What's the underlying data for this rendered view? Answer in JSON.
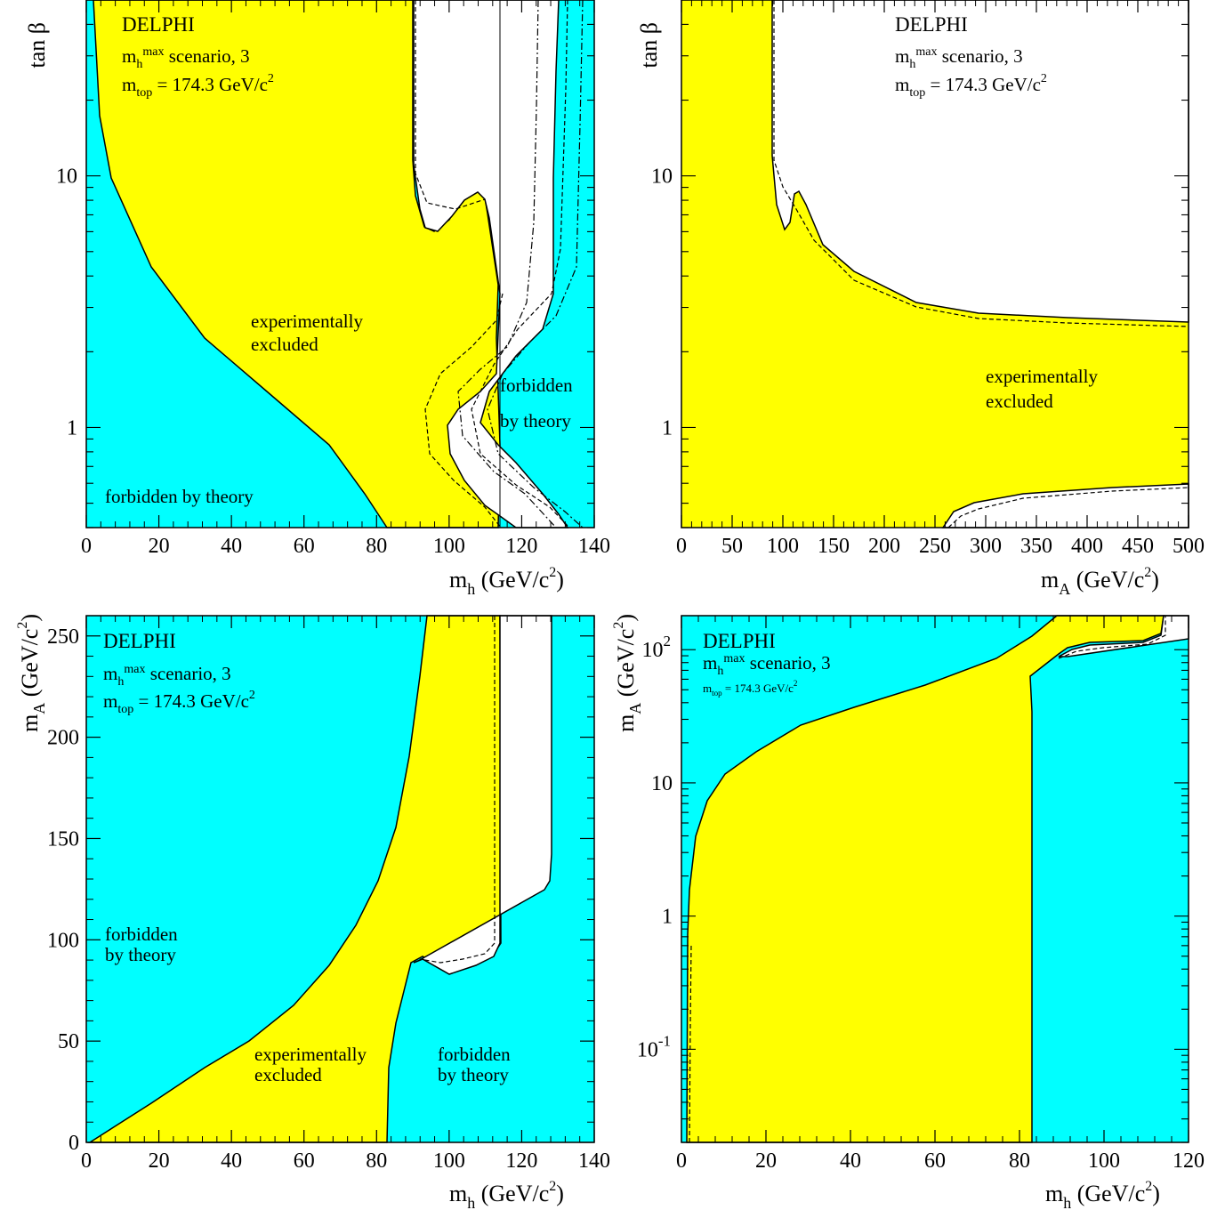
{
  "colors": {
    "allowed": "#ffffff",
    "excluded": "#ffff00",
    "forbidden": "#00ffff",
    "frame": "#000000"
  },
  "chart_data": [
    {
      "type": "area",
      "panel": "top-left",
      "xlabel": "m_h (GeV/c^2)",
      "xlabel_main": "m",
      "xlabel_sub": "h",
      "xlabel_unit": "(GeV/c",
      "xlabel_unit_end": ")",
      "ylabel": "tan β",
      "xscale": "linear",
      "yscale": "log",
      "xlim": [
        0,
        140
      ],
      "ylim": [
        0.4,
        50
      ],
      "xticks": [
        "0",
        "20",
        "40",
        "60",
        "80",
        "100",
        "120",
        "140"
      ],
      "yticks": [
        "1",
        "10"
      ],
      "header": {
        "experiment": "DELPHI",
        "line2": "m_h^max scenario, 3",
        "line3": "m_top = 174.3 GeV/c^2"
      },
      "annotations": [
        "experimentally",
        "excluded",
        "forbidden",
        "by theory",
        "forbidden by theory"
      ],
      "regions": {
        "forbidden_left_boundary": [
          [
            0,
            10
          ],
          [
            10,
            5.2
          ],
          [
            20,
            3.2
          ],
          [
            30,
            2.2
          ],
          [
            40,
            1.6
          ],
          [
            50,
            1.2
          ],
          [
            60,
            0.9
          ],
          [
            70,
            0.7
          ],
          [
            78,
            0.55
          ],
          [
            83,
            0.4
          ]
        ],
        "excluded_right_boundary": [
          [
            90,
            50
          ],
          [
            91,
            9.5
          ],
          [
            93,
            7.0
          ],
          [
            96,
            6.0
          ],
          [
            100,
            6.5
          ],
          [
            104,
            8.0
          ],
          [
            108,
            8.8
          ],
          [
            111,
            8.0
          ],
          [
            113,
            3.5
          ],
          [
            114,
            1.6
          ],
          [
            114,
            0.4
          ]
        ],
        "forbidden_right_boundary": [
          [
            128,
            50
          ],
          [
            128,
            12
          ],
          [
            126,
            4
          ],
          [
            122,
            2.2
          ],
          [
            115,
            1.6
          ],
          [
            108,
            1.4
          ],
          [
            102,
            1.1
          ],
          [
            104,
            0.8
          ],
          [
            112,
            0.62
          ],
          [
            122,
            0.52
          ],
          [
            130,
            0.45
          ],
          [
            133,
            0.4
          ]
        ]
      }
    },
    {
      "type": "area",
      "panel": "top-right",
      "xlabel": "m_A (GeV/c^2)",
      "xlabel_main": "m",
      "xlabel_sub": "A",
      "xlabel_unit": "(GeV/c",
      "xlabel_unit_end": ")",
      "ylabel": "tan β",
      "xscale": "linear",
      "yscale": "log",
      "xlim": [
        0,
        500
      ],
      "ylim": [
        0.4,
        50
      ],
      "xticks": [
        "0",
        "50",
        "100",
        "150",
        "200",
        "250",
        "300",
        "350",
        "400",
        "450",
        "500"
      ],
      "yticks": [
        "1",
        "10"
      ],
      "header": {
        "experiment": "DELPHI",
        "line2": "m_h^max scenario, 3",
        "line3": "m_top = 174.3 GeV/c^2"
      },
      "annotations": [
        "experimentally",
        "excluded"
      ],
      "regions": {
        "excluded_upper_boundary": [
          [
            92,
            50
          ],
          [
            92,
            10
          ],
          [
            96,
            7
          ],
          [
            100,
            6.1
          ],
          [
            106,
            6.4
          ],
          [
            110,
            8.5
          ],
          [
            115,
            8.7
          ],
          [
            125,
            6.5
          ],
          [
            150,
            4.5
          ],
          [
            200,
            3.5
          ],
          [
            250,
            3.2
          ],
          [
            300,
            2.9
          ],
          [
            400,
            2.8
          ],
          [
            500,
            2.7
          ]
        ],
        "excluded_lower_boundary": [
          [
            265,
            0.4
          ],
          [
            280,
            0.5
          ],
          [
            320,
            0.55
          ],
          [
            400,
            0.58
          ],
          [
            500,
            0.6
          ]
        ]
      }
    },
    {
      "type": "area",
      "panel": "bottom-left",
      "xlabel": "m_h (GeV/c^2)",
      "xlabel_main": "m",
      "xlabel_sub": "h",
      "xlabel_unit": "(GeV/c",
      "xlabel_unit_end": ")",
      "ylabel": "m_A (GeV/c^2)",
      "xscale": "linear",
      "yscale": "linear",
      "xlim": [
        0,
        140
      ],
      "ylim": [
        0,
        260
      ],
      "xticks": [
        "0",
        "20",
        "40",
        "60",
        "80",
        "100",
        "120",
        "140"
      ],
      "yticks": [
        "0",
        "50",
        "100",
        "150",
        "200",
        "250"
      ],
      "header": {
        "experiment": "DELPHI",
        "line2": "m_h^max scenario, 3",
        "line3": "m_top = 174.3 GeV/c^2"
      },
      "annotations": [
        "forbidden",
        "by theory",
        "experimentally",
        "excluded",
        "forbidden",
        "by theory"
      ],
      "regions": {
        "forbidden_left_boundary": [
          [
            1,
            0
          ],
          [
            20,
            20
          ],
          [
            40,
            42
          ],
          [
            55,
            70
          ],
          [
            65,
            110
          ],
          [
            72,
            160
          ],
          [
            78,
            220
          ],
          [
            80,
            260
          ]
        ],
        "excluded_right_boundary": [
          [
            114,
            260
          ],
          [
            114,
            130
          ],
          [
            112,
            112
          ],
          [
            105,
            105
          ],
          [
            95,
            96
          ],
          [
            90,
            91
          ]
        ],
        "forbidden_right_boundary": [
          [
            83,
            0
          ],
          [
            84,
            40
          ],
          [
            86,
            70
          ],
          [
            90,
            90
          ],
          [
            126,
            127
          ],
          [
            128,
            135
          ],
          [
            129,
            260
          ]
        ]
      }
    },
    {
      "type": "area",
      "panel": "bottom-right",
      "xlabel": "m_h (GeV/c^2)",
      "xlabel_main": "m",
      "xlabel_sub": "h",
      "xlabel_unit": "(GeV/c",
      "xlabel_unit_end": ")",
      "ylabel": "m_A (GeV/c^2)",
      "xscale": "linear",
      "yscale": "log",
      "xlim": [
        0,
        120
      ],
      "ylim": [
        0.02,
        180
      ],
      "xticks": [
        "0",
        "20",
        "40",
        "60",
        "80",
        "100",
        "120"
      ],
      "yticks": [
        "10^-1",
        "1",
        "10",
        "10^2"
      ],
      "header": {
        "experiment": "DELPHI",
        "line2": "m_h^max scenario, 3",
        "line3": "m_top = 174.3 GeV/c^2"
      },
      "annotations": [],
      "regions": {
        "forbidden_left_boundary": [
          [
            1.5,
            0.02
          ],
          [
            1.5,
            1.5
          ],
          [
            3,
            5
          ],
          [
            8,
            10
          ],
          [
            20,
            22
          ],
          [
            40,
            37
          ],
          [
            60,
            60
          ],
          [
            80,
            110
          ],
          [
            88,
            180
          ]
        ],
        "excluded_right_boundary": [
          [
            83,
            0.02
          ],
          [
            83,
            40
          ],
          [
            85,
            70
          ],
          [
            90,
            90
          ],
          [
            110,
            110
          ],
          [
            114,
            130
          ],
          [
            115,
            180
          ]
        ],
        "forbidden_right_boundary": [
          [
            83,
            0.02
          ],
          [
            83,
            40
          ],
          [
            85,
            70
          ],
          [
            90,
            90
          ],
          [
            120,
            110
          ]
        ]
      }
    }
  ]
}
